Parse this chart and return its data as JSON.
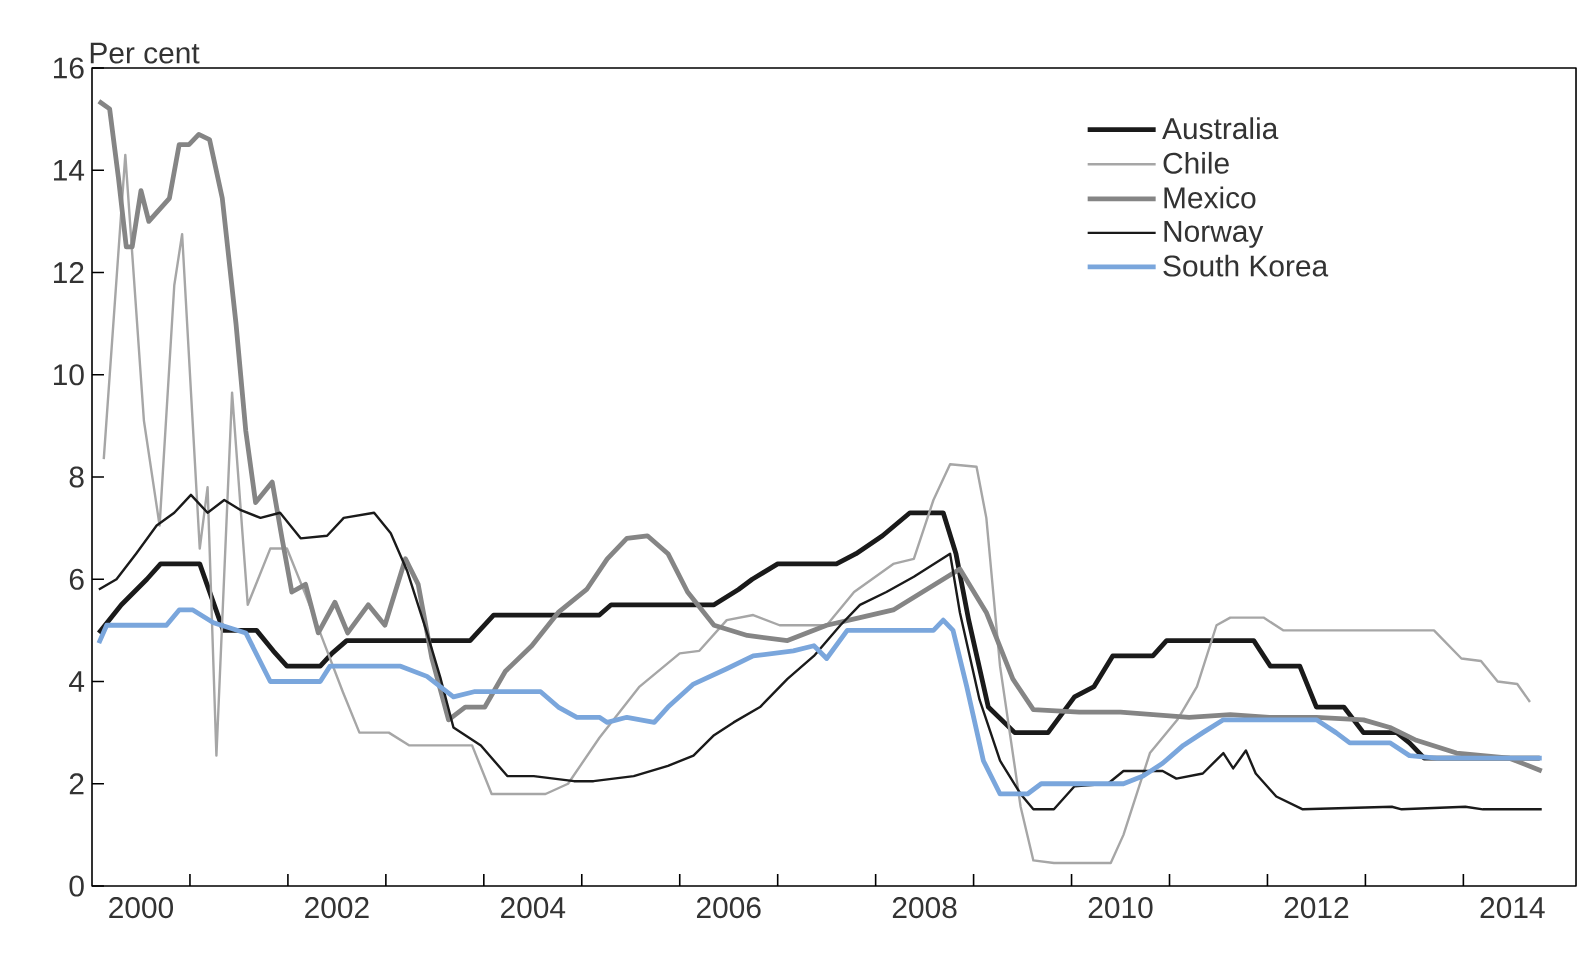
{
  "chart_data": {
    "type": "line",
    "ylabel": "Per cent",
    "xlim": [
      2000,
      2015.15
    ],
    "ylim": [
      0,
      16
    ],
    "xticks": [
      {
        "value": 2000.5,
        "label": "2000"
      },
      {
        "value": 2002.5,
        "label": "2002"
      },
      {
        "value": 2004.5,
        "label": "2004"
      },
      {
        "value": 2006.5,
        "label": "2006"
      },
      {
        "value": 2008.5,
        "label": "2008"
      },
      {
        "value": 2010.5,
        "label": "2010"
      },
      {
        "value": 2012.5,
        "label": "2012"
      },
      {
        "value": 2014.5,
        "label": "2014"
      },
      {
        "value": 2001,
        "label": null
      },
      {
        "value": 2002,
        "label": null
      },
      {
        "value": 2003,
        "label": null
      },
      {
        "value": 2004,
        "label": null
      },
      {
        "value": 2005,
        "label": null
      },
      {
        "value": 2006,
        "label": null
      },
      {
        "value": 2007,
        "label": null
      },
      {
        "value": 2008,
        "label": null
      },
      {
        "value": 2009,
        "label": null
      },
      {
        "value": 2010,
        "label": null
      },
      {
        "value": 2011,
        "label": null
      },
      {
        "value": 2012,
        "label": null
      },
      {
        "value": 2013,
        "label": null
      },
      {
        "value": 2014,
        "label": null
      }
    ],
    "yticks": [
      0,
      2,
      4,
      6,
      8,
      10,
      12,
      14,
      16
    ],
    "grid": false,
    "legend": "top right",
    "marker": "none",
    "line_style": "solid",
    "series": [
      {
        "name": "Australia",
        "color": "#1a1a1a",
        "x": [
          2000.07,
          2000.3,
          2000.56,
          2000.7,
          2001.1,
          2001.34,
          2001.68,
          2001.85,
          2001.99,
          2002.33,
          2002.45,
          2002.6,
          2003.86,
          2004.1,
          2005.18,
          2005.3,
          2006.35,
          2006.6,
          2006.74,
          2007.0,
          2007.6,
          2007.8,
          2008.07,
          2008.35,
          2008.69,
          2008.82,
          2008.95,
          2009.15,
          2009.42,
          2009.76,
          2010.03,
          2010.23,
          2010.42,
          2010.83,
          2010.97,
          2011.86,
          2012.03,
          2012.33,
          2012.5,
          2012.78,
          2012.98,
          2013.32,
          2013.45,
          2013.6,
          2014.78
        ],
        "values": [
          4.95,
          5.5,
          6.0,
          6.3,
          6.3,
          5.0,
          5.0,
          4.6,
          4.3,
          4.3,
          4.55,
          4.8,
          4.8,
          5.3,
          5.3,
          5.5,
          5.5,
          5.8,
          6.0,
          6.3,
          6.3,
          6.5,
          6.85,
          7.3,
          7.3,
          6.5,
          5.2,
          3.5,
          3.0,
          3.0,
          3.7,
          3.9,
          4.5,
          4.5,
          4.8,
          4.8,
          4.3,
          4.3,
          3.5,
          3.5,
          3.0,
          3.0,
          2.8,
          2.5,
          2.5
        ]
      },
      {
        "name": "Chile",
        "color": "#a6a6a6",
        "x": [
          2000.12,
          2000.34,
          2000.53,
          2000.69,
          2000.84,
          2000.92,
          2001.1,
          2001.18,
          2001.27,
          2001.43,
          2001.59,
          2001.82,
          2001.99,
          2002.18,
          2002.36,
          2002.56,
          2002.73,
          2003.03,
          2003.24,
          2003.88,
          2004.08,
          2004.63,
          2004.86,
          2005.18,
          2005.59,
          2006.0,
          2006.2,
          2006.48,
          2006.75,
          2007.02,
          2007.5,
          2007.78,
          2008.18,
          2008.39,
          2008.59,
          2008.76,
          2009.03,
          2009.13,
          2009.27,
          2009.48,
          2009.61,
          2009.82,
          2010.4,
          2010.53,
          2010.8,
          2011.08,
          2011.28,
          2011.48,
          2011.62,
          2011.96,
          2012.16,
          2013.7,
          2013.98,
          2014.18,
          2014.35,
          2014.55,
          2014.68
        ],
        "values": [
          8.35,
          14.3,
          9.1,
          7.05,
          11.75,
          12.75,
          6.6,
          7.8,
          2.55,
          9.65,
          5.5,
          6.6,
          6.6,
          5.7,
          4.8,
          3.8,
          3.0,
          3.0,
          2.75,
          2.75,
          1.8,
          1.8,
          2.0,
          2.9,
          3.9,
          4.55,
          4.6,
          5.2,
          5.3,
          5.1,
          5.1,
          5.75,
          6.3,
          6.4,
          7.55,
          8.25,
          8.2,
          7.2,
          4.3,
          1.55,
          0.5,
          0.45,
          0.45,
          1.0,
          2.6,
          3.25,
          3.9,
          5.1,
          5.25,
          5.25,
          5.0,
          5.0,
          4.45,
          4.4,
          4.0,
          3.95,
          3.6
        ]
      },
      {
        "name": "Mexico",
        "color": "#858585",
        "x": [
          2000.07,
          2000.18,
          2000.27,
          2000.35,
          2000.41,
          2000.5,
          2000.58,
          2000.79,
          2000.89,
          2000.99,
          2001.09,
          2001.2,
          2001.33,
          2001.47,
          2001.57,
          2001.67,
          2001.84,
          2001.94,
          2002.04,
          2002.18,
          2002.31,
          2002.48,
          2002.61,
          2002.82,
          2002.99,
          2003.2,
          2003.33,
          2003.47,
          2003.64,
          2003.81,
          2004.01,
          2004.22,
          2004.49,
          2004.76,
          2005.05,
          2005.26,
          2005.46,
          2005.67,
          2005.88,
          2006.08,
          2006.35,
          2006.69,
          2007.1,
          2007.5,
          2007.84,
          2008.18,
          2008.52,
          2008.86,
          2009.13,
          2009.4,
          2009.61,
          2010.08,
          2010.5,
          2011.2,
          2011.62,
          2012.02,
          2012.5,
          2012.98,
          2013.25,
          2013.52,
          2013.93,
          2014.47,
          2014.8
        ],
        "values": [
          15.35,
          15.2,
          13.85,
          12.5,
          12.5,
          13.6,
          13.0,
          13.45,
          14.5,
          14.5,
          14.7,
          14.6,
          13.45,
          11.0,
          8.9,
          7.5,
          7.9,
          6.8,
          5.75,
          5.9,
          4.95,
          5.55,
          4.95,
          5.5,
          5.1,
          6.4,
          5.9,
          4.45,
          3.25,
          3.5,
          3.5,
          4.2,
          4.7,
          5.35,
          5.8,
          6.4,
          6.8,
          6.85,
          6.5,
          5.75,
          5.1,
          4.9,
          4.8,
          5.1,
          5.25,
          5.4,
          5.8,
          6.2,
          5.35,
          4.05,
          3.45,
          3.4,
          3.4,
          3.3,
          3.35,
          3.3,
          3.3,
          3.25,
          3.1,
          2.85,
          2.6,
          2.5,
          2.25
        ]
      },
      {
        "name": "Norway",
        "color": "#1a1a1a",
        "x": [
          2000.07,
          2000.25,
          2000.45,
          2000.66,
          2000.84,
          2001.01,
          2001.18,
          2001.35,
          2001.52,
          2001.72,
          2001.92,
          2002.13,
          2002.4,
          2002.57,
          2002.88,
          2003.05,
          2003.22,
          2003.42,
          2003.56,
          2003.69,
          2003.97,
          2004.24,
          2004.51,
          2004.92,
          2005.12,
          2005.53,
          2005.88,
          2006.14,
          2006.35,
          2006.55,
          2006.82,
          2007.1,
          2007.37,
          2007.64,
          2007.84,
          2008.11,
          2008.39,
          2008.76,
          2008.86,
          2009.06,
          2009.27,
          2009.48,
          2009.61,
          2009.82,
          2010.03,
          2010.37,
          2010.53,
          2010.93,
          2011.07,
          2011.34,
          2011.55,
          2011.65,
          2011.78,
          2011.88,
          2012.09,
          2012.36,
          2013.27,
          2013.37,
          2014.02,
          2014.2,
          2014.8
        ],
        "values": [
          5.8,
          6.0,
          6.5,
          7.05,
          7.3,
          7.65,
          7.3,
          7.55,
          7.35,
          7.2,
          7.3,
          6.8,
          6.85,
          7.2,
          7.3,
          6.9,
          6.15,
          4.95,
          4.05,
          3.1,
          2.75,
          2.15,
          2.15,
          2.05,
          2.05,
          2.15,
          2.35,
          2.55,
          2.95,
          3.2,
          3.5,
          4.05,
          4.5,
          5.1,
          5.5,
          5.75,
          6.05,
          6.5,
          5.35,
          3.65,
          2.45,
          1.8,
          1.5,
          1.5,
          1.95,
          2.0,
          2.25,
          2.25,
          2.1,
          2.2,
          2.6,
          2.3,
          2.65,
          2.2,
          1.75,
          1.5,
          1.55,
          1.5,
          1.55,
          1.5,
          1.5
        ]
      },
      {
        "name": "South Korea",
        "color": "#7aa6dc",
        "x": [
          2000.07,
          2000.15,
          2000.76,
          2000.89,
          2001.03,
          2001.24,
          2001.57,
          2001.82,
          2002.33,
          2002.43,
          2003.15,
          2003.42,
          2003.69,
          2003.9,
          2004.58,
          2004.76,
          2004.95,
          2005.18,
          2005.26,
          2005.46,
          2005.74,
          2005.88,
          2006.14,
          2006.48,
          2006.75,
          2007.16,
          2007.37,
          2007.5,
          2007.71,
          2008.59,
          2008.69,
          2008.79,
          2008.93,
          2009.1,
          2009.27,
          2009.55,
          2009.69,
          2010.53,
          2010.73,
          2010.93,
          2011.14,
          2011.34,
          2011.55,
          2012.5,
          2012.7,
          2012.84,
          2013.25,
          2013.45,
          2013.73,
          2014.8
        ],
        "values": [
          4.75,
          5.1,
          5.1,
          5.4,
          5.4,
          5.15,
          4.95,
          4.0,
          4.0,
          4.3,
          4.3,
          4.1,
          3.7,
          3.8,
          3.8,
          3.5,
          3.3,
          3.3,
          3.2,
          3.3,
          3.2,
          3.5,
          3.95,
          4.25,
          4.5,
          4.6,
          4.7,
          4.45,
          5.0,
          5.0,
          5.2,
          5.0,
          3.9,
          2.45,
          1.8,
          1.8,
          2.0,
          2.0,
          2.15,
          2.4,
          2.75,
          3.0,
          3.25,
          3.25,
          3.0,
          2.8,
          2.8,
          2.55,
          2.5,
          2.5
        ]
      }
    ]
  }
}
